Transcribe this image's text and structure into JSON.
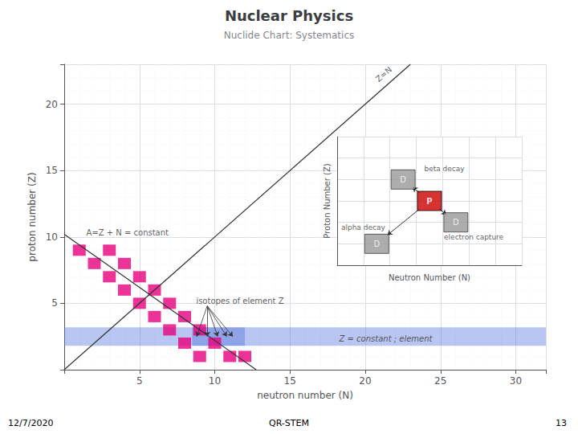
{
  "chart_data": [
    {
      "type": "scatter",
      "title": "Nuclear Physics",
      "subtitle": "Nuclide Chart: Systematics",
      "xlabel": "neutron number (N)",
      "ylabel": "proton number (Z)",
      "x": [
        1,
        2,
        3,
        4,
        5,
        6,
        7,
        8,
        9,
        3,
        4,
        5,
        6,
        7,
        8,
        9,
        10,
        11,
        12
      ],
      "values": [
        9,
        8,
        7,
        6,
        5,
        4,
        3,
        2,
        1,
        9,
        8,
        7,
        6,
        5,
        4,
        3,
        2,
        1,
        1
      ],
      "color": "#e6007e",
      "marker": "square",
      "xlim": [
        0,
        32
      ],
      "ylim": [
        0,
        23
      ],
      "xticks": [
        5,
        10,
        15,
        20,
        25,
        30
      ],
      "yticks": [
        5,
        10,
        15,
        20
      ],
      "grid": true,
      "annotations": [
        "Z=N",
        "A=Z + N = constant",
        "isotopes of element Z",
        "Z = constant ; element",
        "12/7/2020",
        "QR-STEM",
        "13"
      ]
    },
    {
      "type": "diagram",
      "xlabel": "Neutron Number (N)",
      "ylabel": "Proton Number (Z)",
      "xlim": [
        0,
        7
      ],
      "ylim": [
        0,
        6
      ],
      "xticks": [
        0,
        1,
        2,
        3,
        4,
        5,
        6,
        7
      ],
      "yticks": [
        0,
        1,
        2,
        3,
        4,
        5,
        6
      ],
      "grid": true,
      "tick_labels": false,
      "marker": "square",
      "colors": [
        "#cc0000",
        "#999999",
        "#999999",
        "#999999"
      ],
      "annotations": [
        "P",
        "D",
        "D",
        "D",
        "beta decay",
        "electron capture",
        "alpha decay"
      ]
    }
  ]
}
